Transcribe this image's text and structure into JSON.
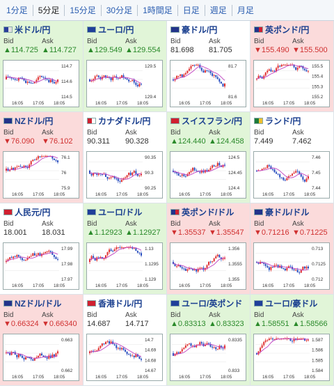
{
  "tabs": [
    {
      "label": "1分足"
    },
    {
      "label": "5分足"
    },
    {
      "label": "15分足"
    },
    {
      "label": "30分足"
    },
    {
      "label": "1時間足"
    },
    {
      "label": "日足"
    },
    {
      "label": "週足"
    },
    {
      "label": "月足"
    }
  ],
  "active_tab": "5分足",
  "labels": {
    "bid": "Bid",
    "ask": "Ask"
  },
  "colors": {
    "up_bg": "#e1f5d8",
    "down_bg": "#fbdbdb",
    "up_text": "#2a8a2a",
    "down_text": "#d03030",
    "candle_up": "#e03030",
    "candle_down": "#2a4fc0",
    "ma_line": "#c040c0"
  },
  "pairs": [
    {
      "name": "米ドル/円",
      "flag": "us",
      "trend": "up",
      "bid": "▲114.725",
      "ask": "▲114.727",
      "ticks": [
        "114.7",
        "114.6",
        "114.5"
      ],
      "times": [
        "16:05",
        "17:05",
        "18:05"
      ]
    },
    {
      "name": "ユーロ/円",
      "flag": "eu",
      "trend": "up",
      "bid": "▲129.549",
      "ask": "▲129.554",
      "ticks": [
        "129.5",
        "129.4"
      ],
      "times": [
        "16:05",
        "17:05",
        "18:05"
      ]
    },
    {
      "name": "豪ドル/円",
      "flag": "au",
      "trend": "flat",
      "bid": "81.698",
      "ask": "81.705",
      "ticks": [
        "81.7",
        "81.6"
      ],
      "times": [
        "16:05",
        "17:05",
        "18:05"
      ]
    },
    {
      "name": "英ポンド/円",
      "flag": "gb",
      "trend": "down",
      "bid": "▼155.490",
      "ask": "▼155.500",
      "ticks": [
        "155.5",
        "155.4",
        "155.3",
        "155.2"
      ],
      "times": [
        "16:05",
        "17:05",
        "18:05"
      ]
    },
    {
      "name": "NZドル/円",
      "flag": "nz",
      "trend": "down",
      "bid": "▼76.090",
      "ask": "▼76.102",
      "ticks": [
        "76.1",
        "76",
        "75.9"
      ],
      "times": [
        "16:05",
        "17:05",
        "18:05"
      ]
    },
    {
      "name": "カナダドル/円",
      "flag": "ca",
      "trend": "flat",
      "bid": "90.311",
      "ask": "90.328",
      "ticks": [
        "90.35",
        "90.3",
        "90.25"
      ],
      "times": [
        "16:05",
        "17:05",
        "18:05"
      ]
    },
    {
      "name": "スイスフラン/円",
      "flag": "ch",
      "trend": "up",
      "bid": "▲124.440",
      "ask": "▲124.458",
      "ticks": [
        "124.5",
        "124.45",
        "124.4"
      ],
      "times": [
        "16:05",
        "17:05",
        "18:05"
      ]
    },
    {
      "name": "ランド/円",
      "flag": "za",
      "trend": "flat",
      "bid": "7.449",
      "ask": "7.462",
      "ticks": [
        "7.46",
        "7.45",
        "7.44"
      ],
      "times": [
        "16:05",
        "17:05",
        "18:05"
      ]
    },
    {
      "name": "人民元/円",
      "flag": "cn",
      "trend": "flat",
      "bid": "18.001",
      "ask": "18.031",
      "ticks": [
        "17.99",
        "17.98",
        "17.97"
      ],
      "times": [
        "16:05",
        "17:05",
        "18:05"
      ]
    },
    {
      "name": "ユーロ/ドル",
      "flag": "eu",
      "trend": "up",
      "bid": "▲1.12923",
      "ask": "▲1.12927",
      "ticks": [
        "1.13",
        "1.1295",
        "1.129"
      ],
      "times": [
        "16:05",
        "17:05",
        "18:05"
      ]
    },
    {
      "name": "英ポンド/ドル",
      "flag": "gb",
      "trend": "down",
      "bid": "▼1.35537",
      "ask": "▼1.35547",
      "ticks": [
        "1.356",
        "1.3555",
        "1.355"
      ],
      "times": [
        "16:05",
        "17:05",
        "18:05"
      ]
    },
    {
      "name": "豪ドル/ドル",
      "flag": "au",
      "trend": "down",
      "bid": "▼0.71216",
      "ask": "▼0.71225",
      "ticks": [
        "0.713",
        "0.7125",
        "0.712"
      ],
      "times": [
        "16:05",
        "17:05",
        "18:05"
      ]
    },
    {
      "name": "NZドル/ドル",
      "flag": "nz",
      "trend": "down",
      "bid": "▼0.66324",
      "ask": "▼0.66340",
      "ticks": [
        "0.663",
        "0.662"
      ],
      "times": [
        "16:05",
        "17:05",
        "18:05"
      ]
    },
    {
      "name": "香港ドル/円",
      "flag": "hk",
      "trend": "flat",
      "bid": "14.687",
      "ask": "14.717",
      "ticks": [
        "14.7",
        "14.69",
        "14.68",
        "14.67"
      ],
      "times": [
        "16:05",
        "17:05",
        "18:05"
      ]
    },
    {
      "name": "ユーロ/英ポンド",
      "flag": "eu",
      "trend": "up",
      "bid": "▲0.83313",
      "ask": "▲0.83323",
      "ticks": [
        "0.8335",
        "0.833"
      ],
      "times": [
        "16:05",
        "17:05",
        "18:05"
      ]
    },
    {
      "name": "ユーロ/豪ドル",
      "flag": "eu",
      "trend": "up",
      "bid": "▲1.58551",
      "ask": "▲1.58566",
      "ticks": [
        "1.587",
        "1.586",
        "1.585",
        "1.584"
      ],
      "times": [
        "16:05",
        "17:05",
        "18:05"
      ]
    }
  ]
}
